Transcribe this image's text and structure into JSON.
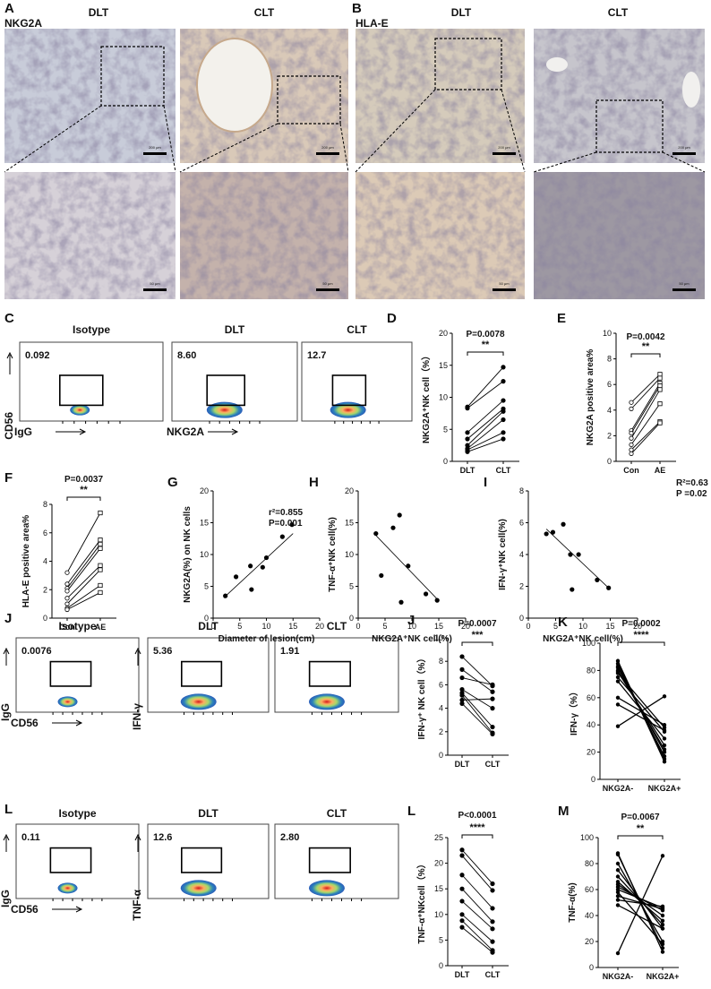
{
  "histology": [
    {
      "label": "A",
      "marker": "NKG2A",
      "columns": [
        "DLT",
        "CLT"
      ],
      "scale_bars": [
        "200 μm",
        "200 μm",
        "50 μm",
        "50 μm"
      ]
    },
    {
      "label": "B",
      "marker": "HLA-E",
      "columns": [
        "DLT",
        "CLT"
      ],
      "scale_bars": [
        "200 μm",
        "200 μm",
        "50 μm",
        "50 μm"
      ]
    }
  ],
  "flow": [
    {
      "label": "C",
      "columns": [
        {
          "title": "Isotype",
          "value": "0.092"
        },
        {
          "title": "DLT",
          "value": "8.60"
        },
        {
          "title": "CLT",
          "value": "12.7"
        }
      ],
      "y_labels": [
        "CD56"
      ],
      "x_labels": [
        "IgG",
        "NKG2A"
      ]
    },
    {
      "label": "J",
      "columns": [
        {
          "title": "Isotype",
          "value": "0.0076"
        },
        {
          "title": "DLT",
          "value": "5.36"
        },
        {
          "title": "CLT",
          "value": "1.91"
        }
      ],
      "y_labels": [
        "IgG",
        "IFN-γ"
      ],
      "x_labels": [
        "CD56"
      ]
    },
    {
      "label": "L",
      "columns": [
        {
          "title": "Isotype",
          "value": "0.11"
        },
        {
          "title": "DLT",
          "value": "12.6"
        },
        {
          "title": "CLT",
          "value": "2.80"
        }
      ],
      "y_labels": [
        "IgG",
        "TNF-α"
      ],
      "x_labels": [
        "CD56"
      ]
    }
  ],
  "chart_data": [
    {
      "type": "paired",
      "label": "D",
      "p": "P=0.0078",
      "stars": "**",
      "ylabel": "NKG2A⁺NK cell（%）",
      "categories": [
        "DLT",
        "CLT"
      ],
      "markers": [
        "circle",
        "circle"
      ],
      "filled": true,
      "pairs": [
        [
          8.5,
          14.7
        ],
        [
          8.3,
          12.5
        ],
        [
          4.5,
          9.5
        ],
        [
          3.5,
          8.2
        ],
        [
          2.5,
          7.8
        ],
        [
          2.0,
          6.5
        ],
        [
          1.8,
          4.5
        ],
        [
          1.5,
          3.5
        ]
      ],
      "ylim": [
        0,
        20
      ],
      "yticks": [
        0,
        5,
        10,
        15,
        20
      ]
    },
    {
      "type": "paired",
      "label": "E",
      "p": "P=0.0042",
      "stars": "**",
      "ylabel": "NKG2A positive area%",
      "categories": [
        "Con",
        "AE"
      ],
      "markers": [
        "circle",
        "square"
      ],
      "filled": false,
      "pairs": [
        [
          4.6,
          6.8
        ],
        [
          4.1,
          6.5
        ],
        [
          2.4,
          6.1
        ],
        [
          2.2,
          5.9
        ],
        [
          1.8,
          5.6
        ],
        [
          1.3,
          4.5
        ],
        [
          0.9,
          3.1
        ],
        [
          0.6,
          3.0
        ]
      ],
      "ylim": [
        0,
        10
      ],
      "yticks": [
        0,
        2,
        4,
        6,
        8,
        10
      ]
    },
    {
      "type": "paired",
      "label": "F",
      "p": "P=0.0037",
      "stars": "**",
      "ylabel": "HLA-E positive area%",
      "categories": [
        "Con",
        "AE"
      ],
      "markers": [
        "circle",
        "square"
      ],
      "filled": false,
      "pairs": [
        [
          3.2,
          7.4
        ],
        [
          2.4,
          5.5
        ],
        [
          2.1,
          5.2
        ],
        [
          1.9,
          4.9
        ],
        [
          1.4,
          3.7
        ],
        [
          1.0,
          3.4
        ],
        [
          0.7,
          2.3
        ],
        [
          0.6,
          1.8
        ]
      ],
      "ylim": [
        0,
        8
      ],
      "yticks": [
        0,
        2,
        4,
        6,
        8
      ]
    },
    {
      "type": "scatter",
      "label": "G",
      "xlabel": "Diameter of lesion(cm)",
      "ylabel": "NKG2A(%) on NK cells",
      "annotations": [
        "r²=0.855",
        "P=0.001"
      ],
      "x": [
        2.3,
        4.3,
        7.0,
        7.2,
        9.3,
        10.0,
        13.0,
        14.8
      ],
      "y": [
        3.5,
        6.5,
        8.2,
        4.5,
        8.0,
        9.5,
        12.8,
        14.7
      ],
      "fit": {
        "x": [
          2.0,
          15.0
        ],
        "y": [
          3.2,
          13.3
        ]
      },
      "xlim": [
        0,
        20
      ],
      "xticks": [
        0,
        5,
        10,
        15,
        20
      ],
      "ylim": [
        0,
        20
      ],
      "yticks": [
        0,
        5,
        10,
        15,
        20
      ]
    },
    {
      "type": "scatter",
      "label": "H",
      "xlabel": "NKG2A⁺NK cell(%)",
      "ylabel": "TNF-α⁺NK cell(%)",
      "annotations": [],
      "x": [
        3.3,
        4.3,
        6.5,
        7.7,
        8.0,
        9.3,
        12.6,
        14.7
      ],
      "y": [
        13.3,
        6.7,
        14.2,
        16.2,
        2.5,
        8.2,
        3.8,
        2.8
      ],
      "fit": {
        "x": [
          3.3,
          14.7
        ],
        "y": [
          13.0,
          3.0
        ]
      },
      "xlim": [
        0,
        20
      ],
      "xticks": [
        0,
        5,
        10,
        15,
        20
      ],
      "ylim": [
        0,
        20
      ],
      "yticks": [
        0,
        5,
        10,
        15,
        20
      ]
    },
    {
      "type": "scatter",
      "label": "I",
      "xlabel": "NKG2A⁺NK cell(%)",
      "ylabel": "IFN-γ⁺NK cell(%)",
      "annotations": [
        "R²=0.63",
        "P  =0.02"
      ],
      "x": [
        3.3,
        4.5,
        6.4,
        7.7,
        8.0,
        9.2,
        12.6,
        14.7
      ],
      "y": [
        5.3,
        5.4,
        5.9,
        4.0,
        1.8,
        4.0,
        2.4,
        1.9
      ],
      "fit": {
        "x": [
          3.3,
          14.7
        ],
        "y": [
          5.6,
          1.9
        ]
      },
      "xlim": [
        0,
        20
      ],
      "xticks": [
        0,
        5,
        10,
        15,
        20
      ],
      "ylim": [
        0,
        8
      ],
      "yticks": [
        0,
        2,
        4,
        6,
        8
      ]
    },
    {
      "type": "paired",
      "label": "J",
      "p": "P=0.0007",
      "stars": "***",
      "ylabel": "IFN-γ⁺ NK cell（%）",
      "categories": [
        "DLT",
        "CLT"
      ],
      "markers": [
        "circle",
        "circle"
      ],
      "filled": true,
      "pairs": [
        [
          8.4,
          5.9
        ],
        [
          7.3,
          5.4
        ],
        [
          6.6,
          6.0
        ],
        [
          5.6,
          4.0
        ],
        [
          5.3,
          2.4
        ],
        [
          5.1,
          1.9
        ],
        [
          4.7,
          4.8
        ],
        [
          4.4,
          1.8
        ]
      ],
      "ylim": [
        0,
        10
      ],
      "yticks": [
        0,
        2,
        4,
        6,
        8,
        10
      ]
    },
    {
      "type": "paired",
      "label": "K",
      "p": "P=0.0002",
      "stars": "****",
      "ylabel": "IFN-γ（%）",
      "categories": [
        "NKG2A-",
        "NKG2A+"
      ],
      "markers": [
        "circle",
        "circle"
      ],
      "filled": true,
      "pairs": [
        [
          87,
          13
        ],
        [
          85,
          15
        ],
        [
          83,
          17
        ],
        [
          82,
          20
        ],
        [
          80,
          22
        ],
        [
          79,
          25
        ],
        [
          78,
          38
        ],
        [
          75,
          35
        ],
        [
          72,
          30
        ],
        [
          60,
          40
        ],
        [
          55,
          36
        ],
        [
          39,
          61
        ]
      ],
      "ylim": [
        0,
        100
      ],
      "yticks": [
        0,
        20,
        40,
        60,
        80,
        100
      ]
    },
    {
      "type": "paired",
      "label": "L",
      "p": "P<0.0001",
      "stars": "****",
      "ylabel": "TNF-α⁺NKcell（%）",
      "categories": [
        "DLT",
        "CLT"
      ],
      "markers": [
        "circle",
        "circle"
      ],
      "filled": true,
      "pairs": [
        [
          22.6,
          16.0
        ],
        [
          21.5,
          14.7
        ],
        [
          17.7,
          11.2
        ],
        [
          15.0,
          8.6
        ],
        [
          12.6,
          7.2
        ],
        [
          10.0,
          4.7
        ],
        [
          8.8,
          3.0
        ],
        [
          7.5,
          2.6
        ]
      ],
      "ylim": [
        0,
        25
      ],
      "yticks": [
        0,
        5,
        10,
        15,
        20,
        25
      ]
    },
    {
      "type": "paired",
      "label": "M",
      "p": "P=0.0067",
      "stars": "**",
      "ylabel": "TNF-α(%)",
      "categories": [
        "NKG2A-",
        "NKG2A+"
      ],
      "markers": [
        "circle",
        "circle"
      ],
      "filled": true,
      "pairs": [
        [
          88,
          12
        ],
        [
          87,
          15
        ],
        [
          80,
          20
        ],
        [
          75,
          30
        ],
        [
          70,
          33
        ],
        [
          66,
          36
        ],
        [
          64,
          40
        ],
        [
          62,
          44
        ],
        [
          60,
          46
        ],
        [
          58,
          18
        ],
        [
          55,
          45
        ],
        [
          52,
          47
        ],
        [
          48,
          30
        ],
        [
          11,
          86
        ]
      ],
      "ylim": [
        0,
        100
      ],
      "yticks": [
        0,
        20,
        40,
        60,
        80,
        100
      ]
    }
  ]
}
